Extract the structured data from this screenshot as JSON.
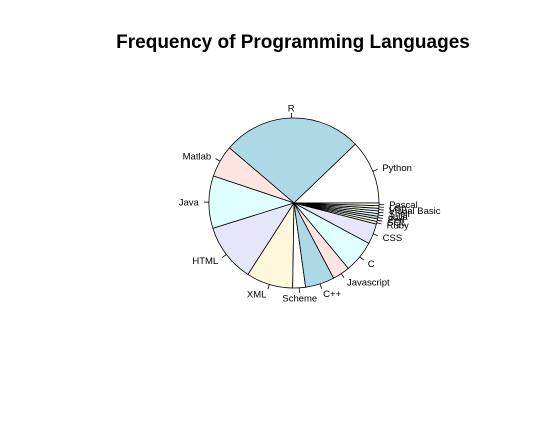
{
  "chart_data": {
    "type": "pie",
    "title": "Frequency of Programming Languages",
    "direction": "counterclockwise",
    "start_angle_deg": 0,
    "slices": [
      {
        "label": "Python",
        "value": 11.0,
        "color": "#ffffff"
      },
      {
        "label": "R",
        "value": 24.0,
        "color": "#add8e6"
      },
      {
        "label": "Matlab",
        "value": 5.5,
        "color": "#ffe4e1"
      },
      {
        "label": "Java",
        "value": 9.0,
        "color": "#e0ffff"
      },
      {
        "label": "HTML",
        "value": 10.0,
        "color": "#e6e6fa"
      },
      {
        "label": "XML",
        "value": 8.0,
        "color": "#fff8dc"
      },
      {
        "label": "Scheme",
        "value": 2.2,
        "color": "#ffffff"
      },
      {
        "label": "C++",
        "value": 5.0,
        "color": "#add8e6"
      },
      {
        "label": "Javascript",
        "value": 3.0,
        "color": "#ffe4e1"
      },
      {
        "label": "C",
        "value": 5.5,
        "color": "#e0ffff"
      },
      {
        "label": "CSS",
        "value": 3.5,
        "color": "#e6e6fa"
      },
      {
        "label": "Ruby",
        "value": 0.45,
        "color": "#fff8dc"
      },
      {
        "label": "SQL",
        "value": 0.45,
        "color": "#ffffff"
      },
      {
        "label": "Perl",
        "value": 0.45,
        "color": "#add8e6"
      },
      {
        "label": "Julia",
        "value": 0.45,
        "color": "#ffe4e1"
      },
      {
        "label": "Shell",
        "value": 0.45,
        "color": "#e0ffff"
      },
      {
        "label": "Visual Basic",
        "value": 0.45,
        "color": "#e6e6fa"
      },
      {
        "label": "Lisp",
        "value": 0.45,
        "color": "#fff8dc"
      },
      {
        "label": "Pascal",
        "value": 0.45,
        "color": "#ffffff"
      }
    ]
  }
}
